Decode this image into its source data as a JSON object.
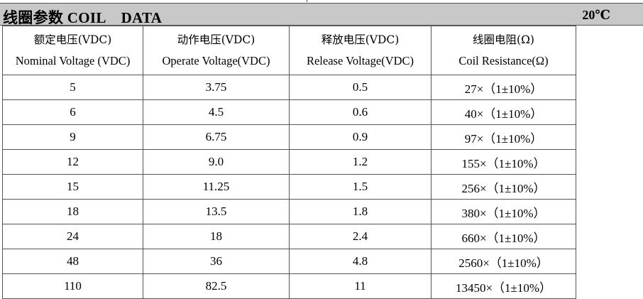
{
  "title": "线圈参数 COIL    DATA",
  "temperature": "20℃",
  "headers": [
    {
      "cn": "额定电压(VDC)",
      "en": "Nominal Voltage (VDC)"
    },
    {
      "cn": "动作电压(VDC)",
      "en": "Operate Voltage(VDC)"
    },
    {
      "cn": "释放电压(VDC)",
      "en": "Release Voltage(VDC)"
    },
    {
      "cn": "线圈电阻(Ω)",
      "en": "Coil Resistance(Ω)"
    }
  ],
  "rows": [
    [
      "5",
      "3.75",
      "0.5",
      "27×（1±10%）"
    ],
    [
      "6",
      "4.5",
      "0.6",
      "40×（1±10%）"
    ],
    [
      "9",
      "6.75",
      "0.9",
      "97×（1±10%）"
    ],
    [
      "12",
      "9.0",
      "1.2",
      "155×（1±10%）"
    ],
    [
      "15",
      "11.25",
      "1.5",
      "256×（1±10%）"
    ],
    [
      "18",
      "13.5",
      "1.8",
      "380×（1±10%）"
    ],
    [
      "24",
      "18",
      "2.4",
      "660×（1±10%）"
    ],
    [
      "48",
      "36",
      "4.8",
      "2560×（1±10%）"
    ],
    [
      "110",
      "82.5",
      "11",
      "13450×（1±10%）"
    ]
  ]
}
